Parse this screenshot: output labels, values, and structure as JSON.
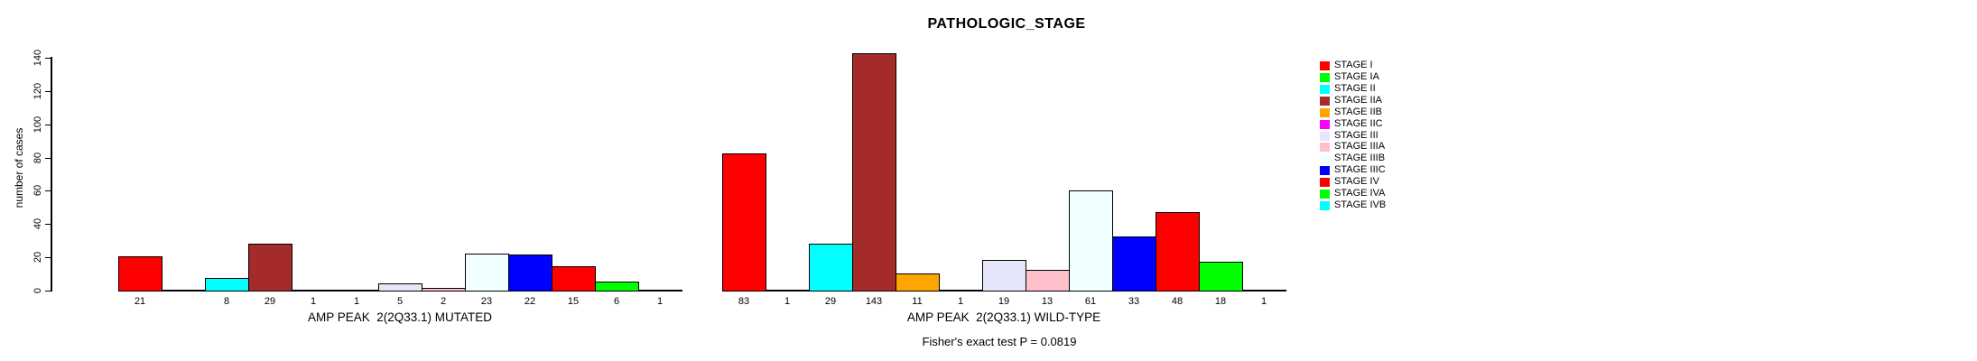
{
  "title": "PATHOLOGIC_STAGE",
  "y_axis": {
    "label": "number of cases",
    "ticks": [
      0,
      20,
      40,
      60,
      80,
      100,
      120,
      140
    ]
  },
  "footer": {
    "fisher_note": "Fisher's exact test P = 0.0819"
  },
  "chart_data": {
    "type": "bar",
    "title": "PATHOLOGIC_STAGE",
    "ylabel": "number of cases",
    "ylim": [
      0,
      140
    ],
    "yticks": [
      0,
      20,
      40,
      60,
      80,
      100,
      120,
      140
    ],
    "grid": false,
    "legend_position": "right",
    "categories": [
      "STAGE I",
      "STAGE IA",
      "STAGE II",
      "STAGE IIA",
      "STAGE IIB",
      "STAGE IIC",
      "STAGE III",
      "STAGE IIIA",
      "STAGE IIIB",
      "STAGE IIIC",
      "STAGE IV",
      "STAGE IVA",
      "STAGE IVB"
    ],
    "colors": [
      "#FF0000",
      "#00FF00",
      "#00FFFF",
      "#A52A2A",
      "#FFA500",
      "#FF00FF",
      "#E6E6FA",
      "#FFC0CB",
      "#F0FFFF",
      "#0000FF",
      "#FF0000",
      "#00FF00",
      "#00FFFF"
    ],
    "series": [
      {
        "name": "MUTATED",
        "xlabel": "AMP PEAK  2(2Q33.1) MUTATED",
        "values": [
          21,
          0,
          8,
          29,
          1,
          1,
          5,
          2,
          23,
          22,
          15,
          6,
          1
        ],
        "bar_labels": [
          "21",
          "",
          "8",
          "29",
          "1",
          "1",
          "5",
          "2",
          "23",
          "22",
          "15",
          "6",
          "1"
        ]
      },
      {
        "name": "WILD-TYPE",
        "xlabel": "AMP PEAK  2(2Q33.1) WILD-TYPE",
        "values": [
          83,
          1,
          29,
          143,
          11,
          1,
          19,
          13,
          61,
          33,
          48,
          18,
          1
        ],
        "bar_labels": [
          "83",
          "1",
          "29",
          "143",
          "11",
          "1",
          "19",
          "13",
          "61",
          "33",
          "48",
          "18",
          "1"
        ]
      }
    ],
    "annotation": "Fisher's exact test P = 0.0819"
  }
}
